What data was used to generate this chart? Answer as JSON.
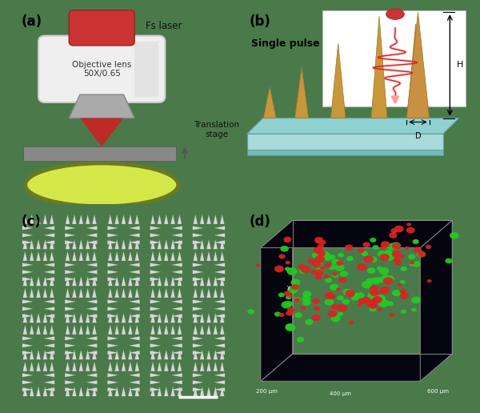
{
  "panel_labels": [
    "(a)",
    "(b)",
    "(c)",
    "(d)"
  ],
  "panel_label_fontsize": 12,
  "panel_label_fontweight": "bold",
  "figure_bg": "#ffffff",
  "outer_bg": "#4a7a4a",
  "panel_a": {
    "bg": "#ffffff",
    "border": "#cccccc",
    "lens_body_color": "#e0e0e0",
    "lens_top_color": "#cc3333",
    "lens_bottom_color": "#b0b0b0",
    "beam_color": "#cc2222",
    "stage_color": "#888888",
    "sample_color": "#d4e84a",
    "sample_edge": "#8a9a30",
    "fs_laser_text": "Fs laser",
    "obj_text": "Objective lens\n50X/0.65",
    "stage_text": "Translation\nstage"
  },
  "panel_b": {
    "bg": "#f0f0f0",
    "white_box_bg": "#ffffff",
    "platform_top": "#8dd4d4",
    "platform_side": "#70b8b8",
    "spike_color": "#c8973a",
    "spike_edge": "#a07830",
    "laser_color": "#cc2222",
    "arrow_color": "#ffaaaa",
    "single_pulse_text": "Single pulse",
    "H_text": "H",
    "D_text": "D"
  },
  "panel_c": {
    "bg": "#808080",
    "spike_color": "#d8d8d8",
    "spike_edge": "#b0b0b0"
  },
  "panel_d": {
    "bg": "#0a0a0a",
    "box_color": "#888888",
    "red_cells": "#dd2222",
    "green_cells": "#22cc22",
    "label_200": "200 μm",
    "label_400": "400 μm",
    "label_600": "600 μm"
  }
}
